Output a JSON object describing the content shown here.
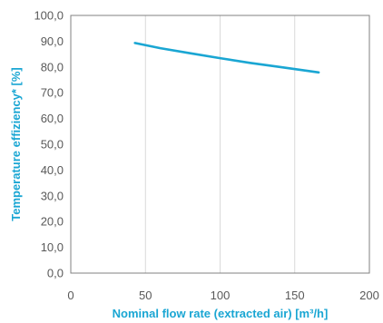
{
  "chart_data": {
    "type": "line",
    "title": "",
    "xlabel": "Nominal flow rate (extracted air) [m³/h]",
    "ylabel": "Temperature effiziency* [%]",
    "xlim": [
      0,
      200
    ],
    "ylim": [
      0,
      100
    ],
    "x_ticks": [
      0,
      50,
      100,
      150,
      200
    ],
    "x_tick_labels": [
      "0",
      "50",
      "100",
      "150",
      "200"
    ],
    "y_ticks": [
      0,
      10,
      20,
      30,
      40,
      50,
      60,
      70,
      80,
      90,
      100
    ],
    "y_tick_labels": [
      "0,0",
      "10,0",
      "20,0",
      "30,0",
      "40,0",
      "50,0",
      "60,0",
      "70,0",
      "80,0",
      "90,0",
      "100,0"
    ],
    "grid": {
      "vertical": true,
      "horizontal": false
    },
    "legend": "none",
    "colors": {
      "series": "#1aa6d3",
      "axis_title": "#1aa6d3",
      "grid": "#d9d9d9",
      "frame": "#808080",
      "tick_label": "#595959"
    },
    "series": [
      {
        "x": [
          43,
          60,
          80,
          100,
          120,
          140,
          166
        ],
        "y": [
          89.3,
          87.3,
          85.3,
          83.4,
          81.6,
          80.0,
          77.9
        ]
      }
    ]
  }
}
